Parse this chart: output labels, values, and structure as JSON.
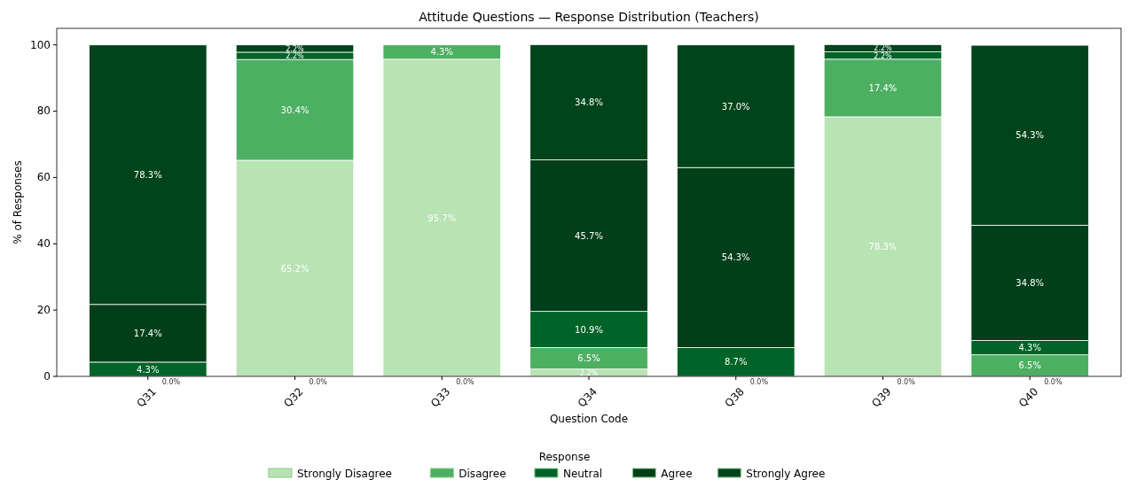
{
  "chart_data": {
    "type": "bar",
    "stacked": true,
    "title": "Attitude Questions — Response Distribution (Teachers)",
    "xlabel": "Question Code",
    "ylabel": "% of Responses",
    "legend_title": "Response",
    "legend": "bottom",
    "grid": false,
    "categories": [
      "Q31",
      "Q32",
      "Q33",
      "Q34",
      "Q38",
      "Q39",
      "Q40"
    ],
    "annotations": [
      {
        "text": "0.0%",
        "x": "Q31",
        "y": 0
      },
      {
        "text": "0.0%",
        "x": "Q32",
        "y": 0
      },
      {
        "text": "0.0%",
        "x": "Q33",
        "y": 0
      },
      {
        "text": "0.0%",
        "x": "Q38",
        "y": 0
      },
      {
        "text": "0.0%",
        "x": "Q39",
        "y": 0
      },
      {
        "text": "0.0%",
        "x": "Q40",
        "y": 0
      }
    ],
    "ylim": [
      0,
      105
    ],
    "yticks": [
      0,
      20,
      40,
      60,
      80,
      100
    ],
    "series": [
      {
        "name": "Strongly Disagree",
        "color": "#b8e3b2",
        "values": [
          0,
          65.2,
          95.7,
          2.2,
          0,
          78.3,
          0
        ],
        "value_labels": [
          null,
          "65.2%",
          "95.7%",
          "2.2%",
          null,
          "78.3%",
          null
        ]
      },
      {
        "name": "Disagree",
        "color": "#4daf62",
        "values": [
          0,
          30.4,
          4.3,
          6.5,
          0,
          17.4,
          6.5
        ],
        "value_labels": [
          null,
          "30.4%",
          "4.3%",
          "6.5%",
          null,
          "17.4%",
          "6.5%"
        ]
      },
      {
        "name": "Neutral",
        "color": "#006428",
        "values": [
          4.3,
          2.2,
          0,
          10.9,
          8.7,
          2.2,
          4.3
        ],
        "value_labels": [
          "4.3%",
          "2.2%",
          null,
          "10.9%",
          "8.7%",
          "2.2%",
          "4.3%"
        ]
      },
      {
        "name": "Agree",
        "color": "#003f19",
        "values": [
          17.4,
          0,
          0,
          45.7,
          54.3,
          0,
          34.8
        ],
        "value_labels": [
          "17.4%",
          null,
          null,
          "45.7%",
          "54.3%",
          null,
          "34.8%"
        ]
      },
      {
        "name": "Strongly Agree",
        "color": "#00441b",
        "values": [
          78.3,
          2.2,
          0,
          34.8,
          37.0,
          2.2,
          54.3
        ],
        "value_labels": [
          "78.3%",
          "2.2%",
          null,
          "34.8%",
          "37.0%",
          "2.2%",
          "54.3%"
        ]
      }
    ]
  }
}
